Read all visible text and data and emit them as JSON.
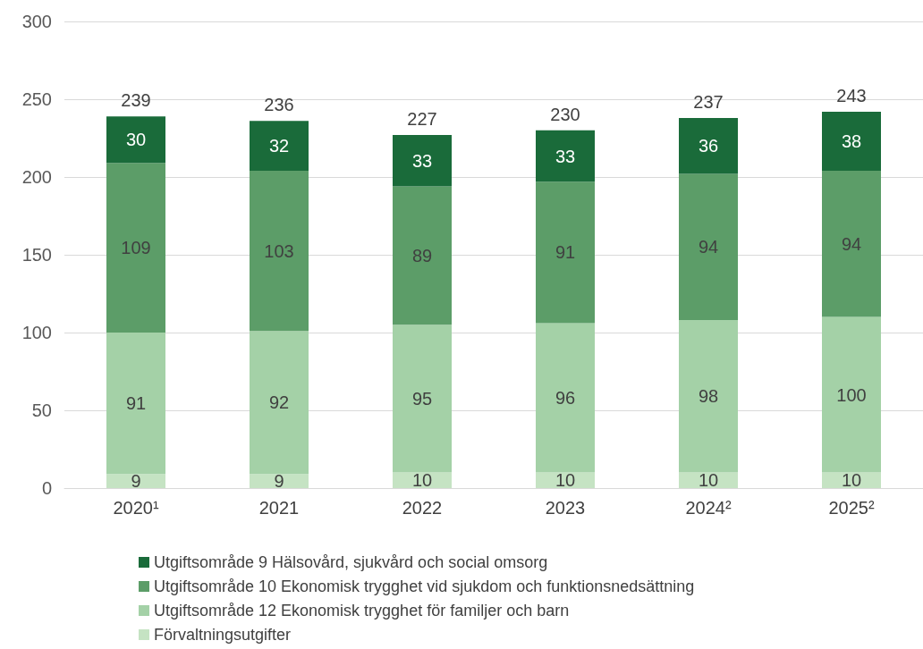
{
  "chart_data": {
    "type": "bar",
    "stacked": true,
    "categories": [
      "2020¹",
      "2021",
      "2022",
      "2023",
      "2024²",
      "2025²"
    ],
    "series": [
      {
        "name": "Förvaltningsutgifter",
        "color": "#c5e3c3",
        "values": [
          9,
          9,
          10,
          10,
          10,
          10
        ]
      },
      {
        "name": "Utgiftsområde 12 Ekonomisk trygghet för familjer och barn",
        "color": "#a4d1a7",
        "values": [
          91,
          92,
          95,
          96,
          98,
          100
        ]
      },
      {
        "name": "Utgiftsområde 10 Ekonomisk trygghet vid sjukdom och funktionsnedsättning",
        "color": "#5c9d68",
        "values": [
          109,
          103,
          89,
          91,
          94,
          94
        ]
      },
      {
        "name": "Utgiftsområde 9 Hälsovård, sjukvård och social omsorg",
        "color": "#1a6b3a",
        "values": [
          30,
          32,
          33,
          33,
          36,
          38
        ]
      }
    ],
    "totals": [
      "239",
      "236",
      "227",
      "230",
      "237",
      "243"
    ],
    "ylim": [
      0,
      300
    ],
    "yticks": [
      0,
      50,
      100,
      150,
      200,
      250,
      300
    ],
    "grid": "y",
    "data_labels": true,
    "legend": "bottom"
  }
}
